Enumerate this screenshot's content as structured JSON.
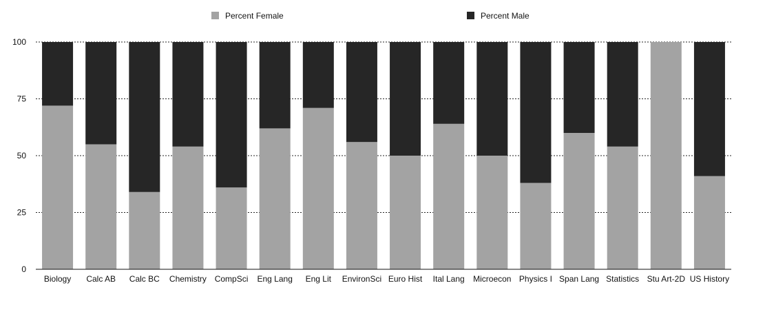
{
  "chart_data": {
    "type": "bar",
    "stacked": true,
    "title": "",
    "xlabel": "",
    "ylabel": "",
    "ylim": [
      0,
      100
    ],
    "yticks": [
      0,
      25,
      50,
      75,
      100
    ],
    "grid": "horizontal-dotted",
    "legend_position": "top",
    "categories": [
      "Biology",
      "Calc AB",
      "Calc BC",
      "Chemistry",
      "CompSci",
      "Eng Lang",
      "Eng Lit",
      "EnvironSci",
      "Euro Hist",
      "Ital Lang",
      "Microecon",
      "Physics I",
      "Span Lang",
      "Statistics",
      "Stu Art-2D",
      "US History"
    ],
    "series": [
      {
        "name": "Percent Female",
        "color": "#a3a3a3",
        "values": [
          72,
          55,
          34,
          54,
          36,
          62,
          71,
          56,
          50,
          64,
          50,
          38,
          60,
          54,
          100,
          41
        ]
      },
      {
        "name": "Percent Male",
        "color": "#262626",
        "values": [
          28,
          45,
          66,
          46,
          64,
          38,
          29,
          44,
          50,
          36,
          50,
          62,
          40,
          46,
          0,
          59
        ]
      }
    ]
  }
}
